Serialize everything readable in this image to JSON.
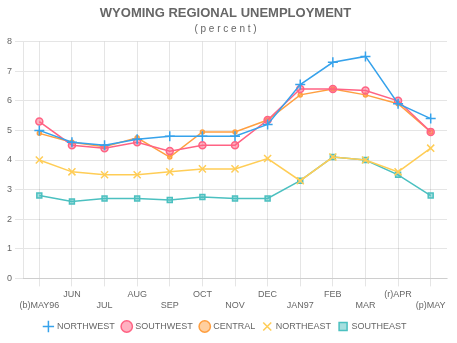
{
  "chart_data": {
    "type": "line",
    "title": "WYOMING REGIONAL UNEMPLOYMENT",
    "subtitle": "( p e r c e n t )",
    "categories": [
      "(b)MAY96",
      "JUN",
      "JUL",
      "AUG",
      "SEP",
      "OCT",
      "NOV",
      "DEC",
      "JAN97",
      "FEB",
      "MAR",
      "(r)APR",
      "(p)MAY"
    ],
    "series": [
      {
        "name": "NORTHWEST",
        "marker": "plus",
        "values": [
          5.0,
          4.6,
          4.5,
          4.7,
          4.8,
          4.8,
          4.8,
          5.2,
          6.55,
          7.3,
          7.5,
          5.9,
          5.4
        ]
      },
      {
        "name": "SOUTHWEST",
        "marker": "circle",
        "values": [
          5.3,
          4.5,
          4.4,
          4.6,
          4.3,
          4.5,
          4.5,
          5.35,
          6.4,
          6.4,
          6.35,
          6.0,
          4.95
        ]
      },
      {
        "name": "CENTRAL",
        "marker": "point",
        "values": [
          4.9,
          4.6,
          4.45,
          4.75,
          4.1,
          4.95,
          4.95,
          5.35,
          6.2,
          6.4,
          6.2,
          5.9,
          4.95
        ]
      },
      {
        "name": "NORTHEAST",
        "marker": "x",
        "values": [
          4.0,
          3.6,
          3.5,
          3.5,
          3.6,
          3.7,
          3.7,
          4.05,
          3.3,
          4.1,
          4.0,
          3.6,
          4.4
        ]
      },
      {
        "name": "SOUTHEAST",
        "marker": "square",
        "values": [
          2.8,
          2.6,
          2.7,
          2.7,
          2.65,
          2.75,
          2.7,
          2.7,
          3.3,
          4.1,
          4.0,
          3.5,
          2.8
        ]
      }
    ],
    "ylim": [
      0,
      8
    ],
    "yticks": [
      0,
      1,
      2,
      3,
      4,
      5,
      6,
      7,
      8
    ],
    "grid": true,
    "legend": "bottom"
  }
}
